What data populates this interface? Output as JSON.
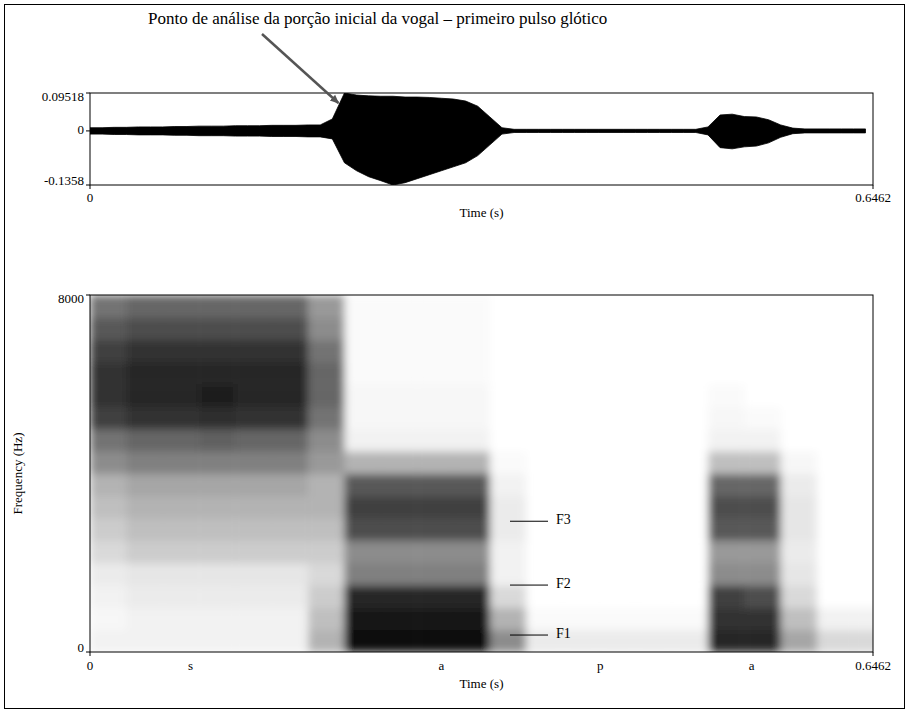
{
  "chart_data": [
    {
      "type": "area",
      "annotation": {
        "text": "Ponto de análise da porção inicial da vogal – primeiro pulso glótico",
        "x": 0.205
      },
      "xlabel": "Time (s)",
      "xlim": [
        0,
        0.6462
      ],
      "xticks": [
        0,
        0.6462
      ],
      "ylim": [
        -0.1358,
        0.09518
      ],
      "yticks": [
        0.09518,
        0,
        -0.1358
      ],
      "color": "#000000",
      "waveform": {
        "x": [
          0,
          0.01,
          0.02,
          0.03,
          0.04,
          0.05,
          0.06,
          0.07,
          0.08,
          0.09,
          0.1,
          0.11,
          0.12,
          0.13,
          0.14,
          0.15,
          0.16,
          0.17,
          0.18,
          0.19,
          0.2,
          0.21,
          0.22,
          0.23,
          0.24,
          0.25,
          0.26,
          0.27,
          0.28,
          0.29,
          0.3,
          0.31,
          0.32,
          0.33,
          0.34,
          0.35,
          0.36,
          0.37,
          0.38,
          0.39,
          0.4,
          0.41,
          0.42,
          0.43,
          0.44,
          0.45,
          0.46,
          0.47,
          0.48,
          0.49,
          0.5,
          0.51,
          0.52,
          0.53,
          0.54,
          0.55,
          0.56,
          0.57,
          0.58,
          0.59,
          0.6,
          0.61,
          0.62,
          0.63,
          0.64
        ],
        "upper": [
          0.008,
          0.008,
          0.009,
          0.009,
          0.01,
          0.01,
          0.01,
          0.011,
          0.011,
          0.012,
          0.012,
          0.012,
          0.013,
          0.013,
          0.013,
          0.014,
          0.014,
          0.014,
          0.015,
          0.015,
          0.03,
          0.09518,
          0.09,
          0.088,
          0.087,
          0.087,
          0.085,
          0.085,
          0.084,
          0.082,
          0.08,
          0.075,
          0.062,
          0.035,
          0.008,
          0.004,
          0.004,
          0.004,
          0.004,
          0.004,
          0.004,
          0.004,
          0.004,
          0.004,
          0.004,
          0.004,
          0.004,
          0.004,
          0.004,
          0.004,
          0.004,
          0.01,
          0.04,
          0.042,
          0.036,
          0.035,
          0.028,
          0.015,
          0.007,
          0.005,
          0.005,
          0.005,
          0.005,
          0.005,
          0.005
        ],
        "lower": [
          -0.008,
          -0.008,
          -0.009,
          -0.009,
          -0.01,
          -0.01,
          -0.01,
          -0.011,
          -0.011,
          -0.012,
          -0.012,
          -0.012,
          -0.013,
          -0.013,
          -0.013,
          -0.014,
          -0.014,
          -0.014,
          -0.015,
          -0.015,
          -0.02,
          -0.08,
          -0.1,
          -0.115,
          -0.125,
          -0.1358,
          -0.13,
          -0.12,
          -0.11,
          -0.1,
          -0.09,
          -0.08,
          -0.062,
          -0.035,
          -0.008,
          -0.004,
          -0.004,
          -0.004,
          -0.004,
          -0.004,
          -0.004,
          -0.004,
          -0.004,
          -0.004,
          -0.004,
          -0.004,
          -0.004,
          -0.004,
          -0.004,
          -0.004,
          -0.004,
          -0.01,
          -0.042,
          -0.045,
          -0.04,
          -0.038,
          -0.03,
          -0.016,
          -0.007,
          -0.005,
          -0.005,
          -0.005,
          -0.005,
          -0.005,
          -0.005
        ]
      }
    },
    {
      "type": "heatmap",
      "xlabel": "Time (s)",
      "ylabel": "Frequency (Hz)",
      "xlim": [
        0,
        0.6462
      ],
      "xticks": [
        0,
        0.6462
      ],
      "ylim": [
        0,
        8000
      ],
      "yticks": [
        0,
        8000
      ],
      "zlim": [
        0,
        1
      ],
      "x_bins": [
        0,
        0.03,
        0.06,
        0.09,
        0.12,
        0.15,
        0.18,
        0.21,
        0.24,
        0.27,
        0.3,
        0.33,
        0.36,
        0.39,
        0.42,
        0.45,
        0.48,
        0.51,
        0.54,
        0.57,
        0.6,
        0.63,
        0.66
      ],
      "y_bins": [
        0,
        500,
        1000,
        1500,
        2000,
        2500,
        3000,
        3500,
        4000,
        4500,
        5000,
        5500,
        6000,
        6500,
        7000,
        7500,
        8000
      ],
      "cells": [
        [
          0.05,
          0.03,
          0.05,
          0.08,
          0.15,
          0.2,
          0.25,
          0.3,
          0.45,
          0.55,
          0.75,
          0.8,
          0.8,
          0.75,
          0.65,
          0.55
        ],
        [
          0.05,
          0.05,
          0.08,
          0.1,
          0.2,
          0.25,
          0.3,
          0.35,
          0.5,
          0.6,
          0.8,
          0.85,
          0.85,
          0.8,
          0.7,
          0.6
        ],
        [
          0.05,
          0.05,
          0.08,
          0.1,
          0.2,
          0.25,
          0.3,
          0.35,
          0.5,
          0.6,
          0.8,
          0.85,
          0.85,
          0.8,
          0.7,
          0.6
        ],
        [
          0.05,
          0.05,
          0.08,
          0.1,
          0.2,
          0.25,
          0.3,
          0.35,
          0.5,
          0.62,
          0.82,
          0.88,
          0.85,
          0.8,
          0.7,
          0.6
        ],
        [
          0.05,
          0.05,
          0.08,
          0.1,
          0.2,
          0.25,
          0.3,
          0.35,
          0.5,
          0.6,
          0.8,
          0.85,
          0.85,
          0.8,
          0.7,
          0.6
        ],
        [
          0.05,
          0.05,
          0.08,
          0.1,
          0.2,
          0.25,
          0.3,
          0.35,
          0.5,
          0.6,
          0.8,
          0.85,
          0.85,
          0.8,
          0.7,
          0.6
        ],
        [
          0.3,
          0.25,
          0.2,
          0.15,
          0.2,
          0.25,
          0.3,
          0.3,
          0.4,
          0.45,
          0.55,
          0.6,
          0.6,
          0.55,
          0.45,
          0.4
        ],
        [
          0.95,
          0.9,
          0.85,
          0.5,
          0.45,
          0.7,
          0.75,
          0.65,
          0.3,
          0.05,
          0.03,
          0.03,
          0.02,
          0.02,
          0.02,
          0.02
        ],
        [
          0.95,
          0.9,
          0.85,
          0.5,
          0.45,
          0.7,
          0.75,
          0.65,
          0.3,
          0.05,
          0.03,
          0.03,
          0.02,
          0.02,
          0.02,
          0.02
        ],
        [
          0.95,
          0.9,
          0.85,
          0.5,
          0.45,
          0.7,
          0.75,
          0.65,
          0.3,
          0.05,
          0.03,
          0.03,
          0.02,
          0.02,
          0.02,
          0.02
        ],
        [
          0.95,
          0.9,
          0.85,
          0.5,
          0.45,
          0.7,
          0.75,
          0.65,
          0.3,
          0.05,
          0.03,
          0.03,
          0.02,
          0.02,
          0.02,
          0.02
        ],
        [
          0.45,
          0.3,
          0.15,
          0.05,
          0.05,
          0.08,
          0.08,
          0.05,
          0.02,
          0,
          0,
          0,
          0,
          0,
          0,
          0
        ],
        [
          0.08,
          0.02,
          0,
          0,
          0,
          0,
          0,
          0,
          0,
          0,
          0,
          0,
          0,
          0,
          0,
          0
        ],
        [
          0.08,
          0.02,
          0,
          0,
          0,
          0,
          0,
          0,
          0,
          0,
          0,
          0,
          0,
          0,
          0,
          0
        ],
        [
          0.08,
          0.02,
          0,
          0,
          0,
          0,
          0,
          0,
          0,
          0,
          0,
          0,
          0,
          0,
          0,
          0
        ],
        [
          0.08,
          0.02,
          0,
          0,
          0,
          0,
          0,
          0,
          0,
          0,
          0,
          0,
          0,
          0,
          0,
          0
        ],
        [
          0.08,
          0.02,
          0,
          0,
          0,
          0,
          0,
          0,
          0,
          0,
          0,
          0,
          0,
          0,
          0,
          0
        ],
        [
          0.85,
          0.8,
          0.75,
          0.45,
          0.4,
          0.65,
          0.7,
          0.6,
          0.25,
          0.05,
          0.03,
          0.02,
          0,
          0,
          0,
          0
        ],
        [
          0.85,
          0.8,
          0.7,
          0.45,
          0.4,
          0.65,
          0.7,
          0.6,
          0.25,
          0.05,
          0.02,
          0,
          0,
          0,
          0,
          0
        ],
        [
          0.35,
          0.25,
          0.15,
          0.1,
          0.08,
          0.1,
          0.1,
          0.08,
          0.03,
          0,
          0,
          0,
          0,
          0,
          0,
          0
        ],
        [
          0.15,
          0.05,
          0,
          0,
          0,
          0,
          0,
          0,
          0,
          0,
          0,
          0,
          0,
          0,
          0,
          0
        ],
        [
          0.15,
          0.05,
          0,
          0,
          0,
          0,
          0,
          0,
          0,
          0,
          0,
          0,
          0,
          0,
          0,
          0
        ]
      ],
      "segments": [
        {
          "label": "s",
          "x": 0.083
        },
        {
          "label": "a",
          "x": 0.29
        },
        {
          "label": "p",
          "x": 0.421
        },
        {
          "label": "a",
          "x": 0.546
        }
      ],
      "formants": [
        {
          "label": "F1",
          "freq": 380
        },
        {
          "label": "F2",
          "freq": 1500
        },
        {
          "label": "F3",
          "freq": 2930
        }
      ]
    }
  ]
}
